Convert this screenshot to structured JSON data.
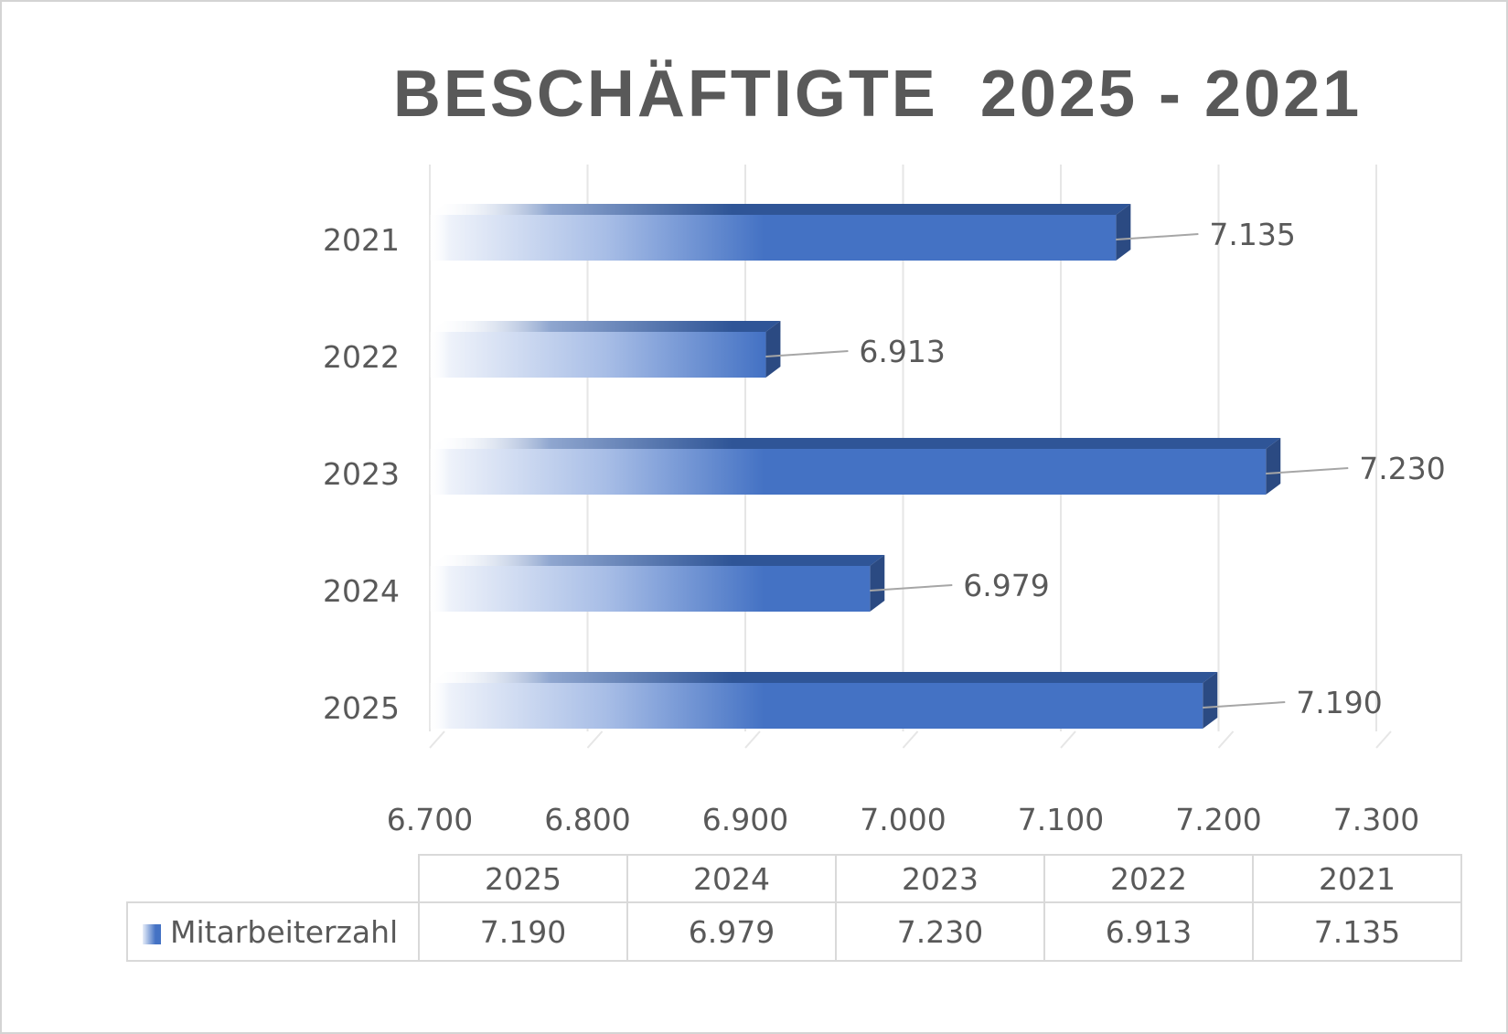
{
  "chart_data": {
    "type": "bar",
    "orientation": "horizontal",
    "style": "3d-gradient",
    "title": "BESCHÄFTIGTE  2025 - 2021",
    "categories": [
      "2021",
      "2022",
      "2023",
      "2024",
      "2025"
    ],
    "series": [
      {
        "name": "Mitarbeiterzahl",
        "values": [
          7135,
          6913,
          7230,
          6979,
          7190
        ]
      }
    ],
    "data_labels": [
      "7.135",
      "6.913",
      "7.230",
      "6.979",
      "7.190"
    ],
    "xlim": [
      6700,
      7300
    ],
    "x_ticks": [
      6700,
      6800,
      6900,
      7000,
      7100,
      7200,
      7300
    ],
    "x_tick_labels": [
      "6.700",
      "6.800",
      "6.900",
      "7.000",
      "7.100",
      "7.200",
      "7.300"
    ],
    "grid": true,
    "bar_color": "#4472c4",
    "bar_top_color": "#2f5597",
    "bar_side_color": "#2b4a82",
    "legend": "data-table"
  },
  "data_table": {
    "series_name": "Mitarbeiterzahl",
    "columns": [
      "2025",
      "2024",
      "2023",
      "2022",
      "2021"
    ],
    "values": [
      "7.190",
      "6.979",
      "7.230",
      "6.913",
      "7.135"
    ]
  }
}
